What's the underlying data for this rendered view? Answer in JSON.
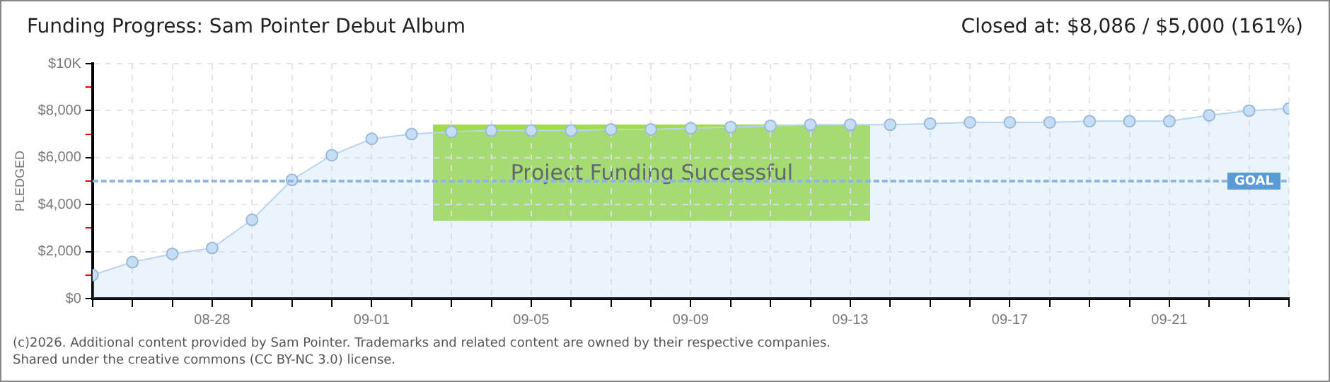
{
  "chart_data": {
    "type": "area",
    "title": "Funding Progress: Sam Pointer Debut Album",
    "subtitle": "Closed at: $8,086 / $5,000 (161%)",
    "ylabel": "PLEDGED",
    "x": [
      "--08-25",
      "--08-26",
      "--08-27",
      "--08-28",
      "--08-29",
      "--08-30",
      "--08-31",
      "--09-01",
      "--09-02",
      "--09-03",
      "--09-04",
      "--09-05",
      "--09-06",
      "--09-07",
      "--09-08",
      "--09-09",
      "--09-10",
      "--09-11",
      "--09-12",
      "--09-13",
      "--09-14",
      "--09-15",
      "--09-16",
      "--09-17",
      "--09-18",
      "--09-19",
      "--09-20",
      "--09-21",
      "--09-22",
      "--09-23",
      "--09-24"
    ],
    "series": [
      {
        "color": "#b8d4f0",
        "values": [
          1000,
          1550,
          1900,
          2150,
          3350,
          5050,
          6100,
          6800,
          7000,
          7100,
          7150,
          7150,
          7150,
          7200,
          7200,
          7250,
          7300,
          7350,
          7400,
          7400,
          7400,
          7450,
          7500,
          7500,
          7500,
          7550,
          7550,
          7550,
          7800,
          8000,
          8086
        ]
      }
    ],
    "xlim": [
      "--08-25",
      "--09-24"
    ],
    "xticks": [
      {
        "value": "--08-25",
        "label": null
      },
      {
        "value": "--08-26",
        "label": null
      },
      {
        "value": "--08-27",
        "label": null
      },
      {
        "value": "--08-28",
        "label": "08-28"
      },
      {
        "value": "--08-29",
        "label": null
      },
      {
        "value": "--08-30",
        "label": null
      },
      {
        "value": "--08-31",
        "label": null
      },
      {
        "value": "--09-01",
        "label": "09-01"
      },
      {
        "value": "--09-02",
        "label": null
      },
      {
        "value": "--09-03",
        "label": null
      },
      {
        "value": "--09-04",
        "label": null
      },
      {
        "value": "--09-05",
        "label": "09-05"
      },
      {
        "value": "--09-06",
        "label": null
      },
      {
        "value": "--09-07",
        "label": null
      },
      {
        "value": "--09-08",
        "label": null
      },
      {
        "value": "--09-09",
        "label": "09-09"
      },
      {
        "value": "--09-10",
        "label": null
      },
      {
        "value": "--09-11",
        "label": null
      },
      {
        "value": "--09-12",
        "label": null
      },
      {
        "value": "--09-13",
        "label": "09-13"
      },
      {
        "value": "--09-14",
        "label": null
      },
      {
        "value": "--09-15",
        "label": null
      },
      {
        "value": "--09-16",
        "label": null
      },
      {
        "value": "--09-17",
        "label": "09-17"
      },
      {
        "value": "--09-18",
        "label": null
      },
      {
        "value": "--09-19",
        "label": null
      },
      {
        "value": "--09-20",
        "label": null
      },
      {
        "value": "--09-21",
        "label": "09-21"
      },
      {
        "value": "--09-22",
        "label": null
      },
      {
        "value": "--09-23",
        "label": null
      },
      {
        "value": "--09-24",
        "label": null
      }
    ],
    "ylim": [
      0,
      10000
    ],
    "yticks": [
      {
        "value": 0,
        "label": "$0"
      },
      {
        "value": 1000,
        "label": null
      },
      {
        "value": 2000,
        "label": "$2,000"
      },
      {
        "value": 3000,
        "label": null
      },
      {
        "value": 4000,
        "label": "$4,000"
      },
      {
        "value": 5000,
        "label": null
      },
      {
        "value": 6000,
        "label": "$6,000"
      },
      {
        "value": 7000,
        "label": null
      },
      {
        "value": 8000,
        "label": "$8,000"
      },
      {
        "value": 9000,
        "label": null
      },
      {
        "value": 10000,
        "label": "$10K"
      }
    ],
    "ref_lines": [
      {
        "axis": "y",
        "value": 5000,
        "label": "GOAL",
        "color": "#8fb5e0",
        "line_style": "dashed"
      }
    ],
    "annotations": [
      "Project Funding Successful",
      "(c)2026. Additional content provided by Sam Pointer. Trademarks and related content are owned by their respective companies.",
      "Shared under the creative commons (CC BY-NC 3.0) license."
    ],
    "grid": true,
    "legend": false,
    "marker": "circle",
    "line_style": "solid"
  }
}
